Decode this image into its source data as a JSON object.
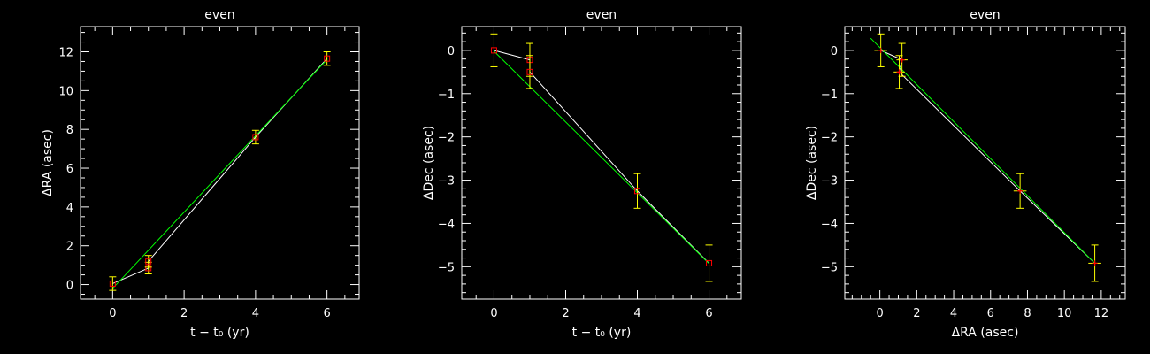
{
  "colors": {
    "background": "#000000",
    "axes": "#ffffff",
    "data_marker": "#ff0000",
    "error_bar": "#ffff00",
    "connect_line": "#ffffff",
    "fit_line": "#00ff00"
  },
  "chart_data": [
    {
      "type": "scatter",
      "title": "even",
      "xlabel": "t − t₀ (yr)",
      "ylabel": "ΔRA (asec)",
      "xlim": [
        -0.9,
        6.9
      ],
      "ylim": [
        -0.75,
        13.3
      ],
      "xticks": [
        0,
        2,
        4,
        6
      ],
      "yticks": [
        0,
        2,
        4,
        6,
        8,
        10,
        12
      ],
      "xtick_labels": [
        "0",
        "2",
        "4",
        "6"
      ],
      "ytick_labels": [
        "0",
        "2",
        "4",
        "6",
        "8",
        "10",
        "12"
      ],
      "marker": "square",
      "points": [
        {
          "x": 0,
          "y": 0.05,
          "yerr": 0.35
        },
        {
          "x": 1,
          "y": 0.85,
          "yerr": 0.3
        },
        {
          "x": 1,
          "y": 1.2,
          "yerr": 0.3
        },
        {
          "x": 4,
          "y": 7.6,
          "yerr": 0.35
        },
        {
          "x": 6,
          "y": 11.65,
          "yerr": 0.35
        }
      ],
      "fit": {
        "x": [
          0,
          6
        ],
        "y": [
          -0.2,
          11.6
        ]
      }
    },
    {
      "type": "scatter",
      "title": "even",
      "xlabel": "t − t₀ (yr)",
      "ylabel": "ΔDec (asec)",
      "xlim": [
        -0.9,
        6.9
      ],
      "ylim": [
        -5.75,
        0.55
      ],
      "xticks": [
        0,
        2,
        4,
        6
      ],
      "yticks": [
        0,
        -1,
        -2,
        -3,
        -4,
        -5
      ],
      "xtick_labels": [
        "0",
        "2",
        "4",
        "6"
      ],
      "ytick_labels": [
        "0",
        "−1",
        "−2",
        "−3",
        "−4",
        "−5"
      ],
      "marker": "square",
      "points": [
        {
          "x": 0,
          "y": 0.0,
          "yerr": 0.38
        },
        {
          "x": 1,
          "y": -0.22,
          "yerr": 0.38
        },
        {
          "x": 1,
          "y": -0.5,
          "yerr": 0.38
        },
        {
          "x": 4,
          "y": -3.25,
          "yerr": 0.4
        },
        {
          "x": 6,
          "y": -4.92,
          "yerr": 0.42
        }
      ],
      "fit": {
        "x": [
          0,
          6
        ],
        "y": [
          -0.02,
          -4.93
        ]
      }
    },
    {
      "type": "scatter",
      "title": "even",
      "xlabel": "ΔRA (asec)",
      "ylabel": "ΔDec (asec)",
      "xlim": [
        -1.9,
        13.3
      ],
      "ylim": [
        -5.75,
        0.55
      ],
      "xticks": [
        0,
        2,
        4,
        6,
        8,
        10,
        12
      ],
      "yticks": [
        0,
        -1,
        -2,
        -3,
        -4,
        -5
      ],
      "xtick_labels": [
        "0",
        "2",
        "4",
        "6",
        "8",
        "10",
        "12"
      ],
      "ytick_labels": [
        "0",
        "−1",
        "−2",
        "−3",
        "−4",
        "−5"
      ],
      "marker": "cross",
      "points": [
        {
          "x": 0.05,
          "y": 0.0,
          "xerr": 0.35,
          "yerr": 0.38
        },
        {
          "x": 1.2,
          "y": -0.22,
          "xerr": 0.3,
          "yerr": 0.38
        },
        {
          "x": 1.05,
          "y": -0.5,
          "xerr": 0.3,
          "yerr": 0.38
        },
        {
          "x": 7.6,
          "y": -3.25,
          "xerr": 0.35,
          "yerr": 0.4
        },
        {
          "x": 11.65,
          "y": -4.92,
          "xerr": 0.35,
          "yerr": 0.42
        }
      ],
      "fit": {
        "x": [
          -0.5,
          11.65
        ],
        "y": [
          0.28,
          -4.92
        ]
      }
    }
  ]
}
